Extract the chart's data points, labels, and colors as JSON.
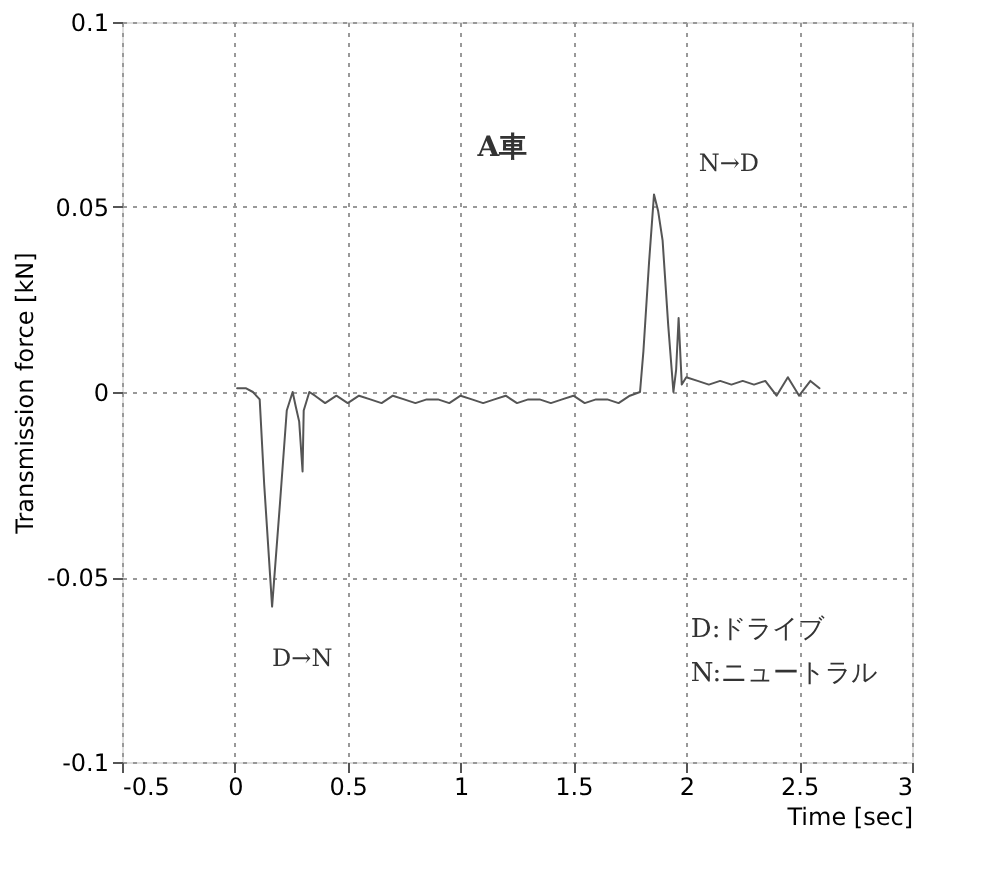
{
  "chart_data": {
    "type": "line",
    "xlabel": "Time [sec]",
    "ylabel": "Transmission force [kN]",
    "xlim": [
      -0.5,
      3
    ],
    "xticks": [
      -0.5,
      0,
      0.5,
      1,
      1.5,
      2,
      2.5,
      3
    ],
    "ylim": [
      -0.1,
      0.1
    ],
    "yticks": [
      -0.1,
      -0.05,
      0,
      0.05,
      0.1
    ],
    "grid": true,
    "line_style": "solid",
    "series": [
      {
        "color": "#555555",
        "x": [
          0.01,
          0.05,
          0.08,
          0.11,
          0.13,
          0.165,
          0.2,
          0.23,
          0.256,
          0.27,
          0.285,
          0.3,
          0.305,
          0.33,
          0.355,
          0.4,
          0.45,
          0.5,
          0.55,
          0.6,
          0.65,
          0.7,
          0.75,
          0.8,
          0.85,
          0.9,
          0.95,
          1.0,
          1.05,
          1.1,
          1.15,
          1.2,
          1.25,
          1.3,
          1.35,
          1.4,
          1.45,
          1.5,
          1.55,
          1.6,
          1.65,
          1.7,
          1.75,
          1.795,
          1.81,
          1.835,
          1.857,
          1.875,
          1.895,
          1.92,
          1.943,
          1.955,
          1.966,
          1.98,
          2.0,
          2.05,
          2.1,
          2.15,
          2.2,
          2.25,
          2.3,
          2.35,
          2.4,
          2.45,
          2.5,
          2.55,
          2.59
        ],
        "values": [
          0.001,
          0.001,
          0.0,
          -0.002,
          -0.025,
          -0.058,
          -0.03,
          -0.005,
          0.0,
          -0.004,
          -0.008,
          -0.0215,
          -0.005,
          0.0,
          -0.001,
          -0.003,
          -0.001,
          -0.003,
          -0.001,
          -0.002,
          -0.003,
          -0.001,
          -0.002,
          -0.003,
          -0.002,
          -0.002,
          -0.003,
          -0.001,
          -0.002,
          -0.003,
          -0.002,
          -0.001,
          -0.003,
          -0.002,
          -0.002,
          -0.003,
          -0.002,
          -0.001,
          -0.003,
          -0.002,
          -0.002,
          -0.003,
          -0.001,
          0.0,
          0.011,
          0.035,
          0.0534,
          0.049,
          0.041,
          0.018,
          0.0,
          0.006,
          0.02,
          0.002,
          0.004,
          0.003,
          0.002,
          0.003,
          0.002,
          0.003,
          0.002,
          0.003,
          -0.001,
          0.004,
          -0.001,
          0.003,
          0.001
        ]
      }
    ],
    "annotations": [
      "A車",
      "N→D",
      "D→N",
      "D:ドライブ",
      "N:ニュートラル"
    ]
  }
}
